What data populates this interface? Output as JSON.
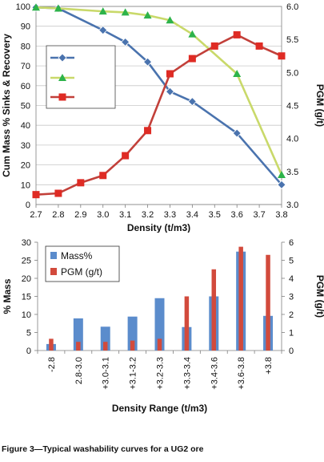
{
  "caption": "Figure 3—Typical washability curves for a UG2 ore",
  "colors": {
    "mass": "#4a73ae",
    "mass_bar": "#5b8ccc",
    "pgm_bar": "#d24a3c",
    "sinks_marker": "#2db34a",
    "sinks_line": "#c9d96a",
    "recovery_marker": "#df2b24",
    "recovery_line": "#c2403a",
    "grid": "#c8c8c8",
    "axis": "#7f7f7f"
  },
  "chart_data": [
    {
      "type": "line",
      "title": "",
      "xlabel": "Density (t/m3)",
      "ylabel": "Cum Mass % Sinks & Recovery",
      "y2label": "PGM (g/t)",
      "x_ticks": [
        "2.7",
        "2.8",
        "2.9",
        "3.0",
        "3.1",
        "3.2",
        "3.3",
        "3.4",
        "3.5",
        "3.6",
        "3.7",
        "3.8"
      ],
      "xlim": [
        2.7,
        3.8
      ],
      "ylim": [
        0,
        100
      ],
      "y_ticks": [
        "0",
        "10",
        "20",
        "30",
        "40",
        "50",
        "60",
        "70",
        "80",
        "90",
        "100"
      ],
      "y2lim": [
        3.0,
        6.0
      ],
      "y2_ticks": [
        "3.0",
        "3.5",
        "4.0",
        "4.5",
        "5.0",
        "5.5",
        "6.0"
      ],
      "grid": "horizontal",
      "legend_position": "upper-left",
      "series": [
        {
          "marker": "diamond",
          "axis": "left",
          "x": [
            2.7,
            2.8,
            3.0,
            3.1,
            3.2,
            3.3,
            3.4,
            3.6,
            3.8
          ],
          "values": [
            99.5,
            99,
            88,
            82,
            72,
            57,
            52,
            36,
            10
          ]
        },
        {
          "marker": "triangle",
          "axis": "left",
          "x": [
            2.7,
            2.8,
            3.0,
            3.1,
            3.2,
            3.3,
            3.4,
            3.6,
            3.8
          ],
          "values": [
            99.5,
            99,
            97.5,
            97,
            95.5,
            93,
            86,
            66,
            15
          ]
        },
        {
          "marker": "square",
          "axis": "right",
          "x": [
            2.7,
            2.8,
            2.9,
            3.0,
            3.1,
            3.2,
            3.3,
            3.4,
            3.5,
            3.6,
            3.7,
            3.8
          ],
          "values": [
            3.15,
            3.17,
            3.33,
            3.44,
            3.74,
            4.12,
            4.98,
            5.21,
            5.4,
            5.57,
            5.4,
            5.25
          ]
        }
      ]
    },
    {
      "type": "bar",
      "title": "",
      "xlabel": "Density Range (t/m3)",
      "ylabel": "% Mass",
      "y2label": "PGM (g/t)",
      "categories": [
        "-2.8",
        "2.8-3.0",
        "+3.0-3.1",
        "+3.1-3.2",
        "+3.2-3.3",
        "+3.3-3.4",
        "+3.4-3.6",
        "+3.6-3.8",
        "+3.8"
      ],
      "ylim": [
        0,
        30
      ],
      "y_ticks": [
        "0",
        "5",
        "10",
        "15",
        "20",
        "25",
        "30"
      ],
      "y2lim": [
        0,
        6
      ],
      "y2_ticks": [
        "0",
        "1",
        "2",
        "3",
        "4",
        "5",
        "6"
      ],
      "grid": "none",
      "legend_position": "upper-left",
      "series": [
        {
          "name": "Mass%",
          "axis": "left",
          "values": [
            1.8,
            8.9,
            6.6,
            9.4,
            14.5,
            6.5,
            15,
            27.4,
            9.6
          ]
        },
        {
          "name": "PGM (g/t)",
          "axis": "right",
          "values": [
            0.65,
            0.48,
            0.48,
            0.55,
            0.65,
            3,
            4.5,
            5.75,
            5.3
          ]
        }
      ]
    }
  ]
}
